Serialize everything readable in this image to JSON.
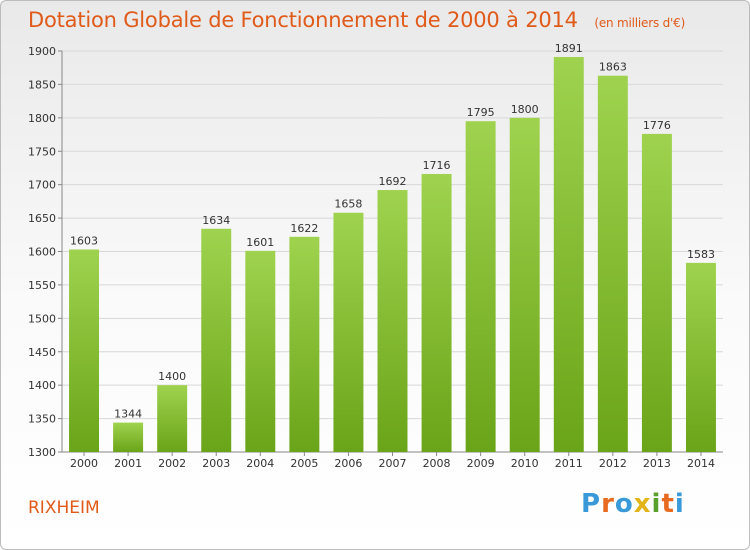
{
  "header": {
    "title": "Dotation Globale de Fonctionnement de 2000 à 2014",
    "unit_note": "(en milliers d'€)"
  },
  "footer": {
    "city": "RIXHEIM",
    "logo_text": "Proxiti"
  },
  "colors": {
    "title": "#e05a1a",
    "bar_light": "#9fd34f",
    "bar_dark": "#6aa418",
    "grid": "#d8d8d8",
    "axis": "#888888",
    "text": "#333333"
  },
  "chart_data": {
    "type": "bar",
    "categories": [
      "2000",
      "2001",
      "2002",
      "2003",
      "2004",
      "2005",
      "2006",
      "2007",
      "2008",
      "2009",
      "2010",
      "2011",
      "2012",
      "2013",
      "2014"
    ],
    "values": [
      1603,
      1344,
      1400,
      1634,
      1601,
      1622,
      1658,
      1692,
      1716,
      1795,
      1800,
      1891,
      1863,
      1776,
      1583
    ],
    "ylim": [
      1300,
      1900
    ],
    "yticks": [
      1300,
      1350,
      1400,
      1450,
      1500,
      1550,
      1600,
      1650,
      1700,
      1750,
      1800,
      1850,
      1900
    ],
    "grid": true,
    "data_labels": true
  }
}
